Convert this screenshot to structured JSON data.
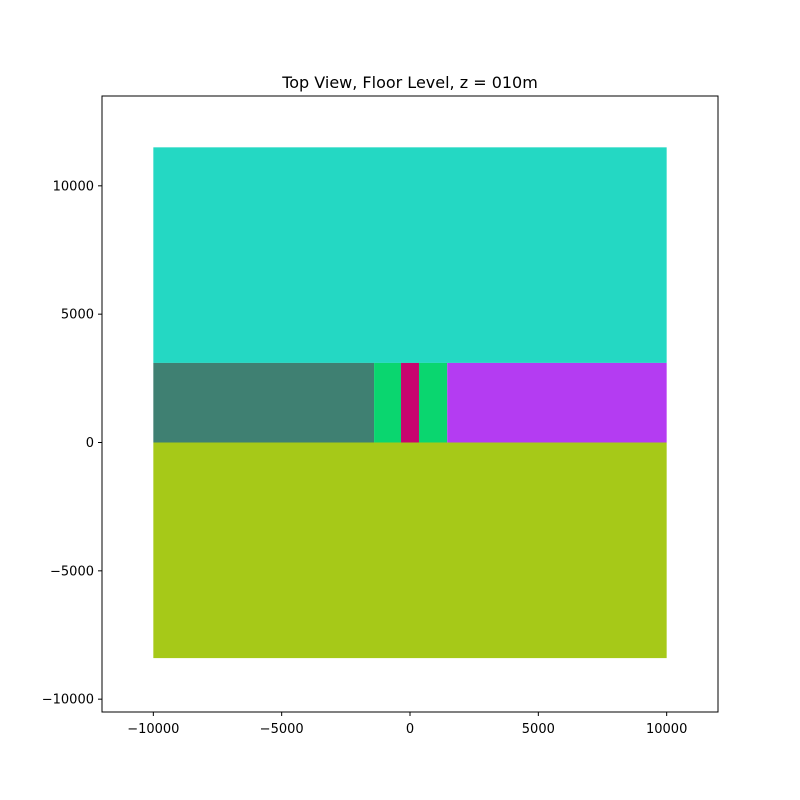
{
  "chart_data": {
    "type": "area",
    "title": "Top View, Floor Level, z = 010m",
    "xlabel": "",
    "ylabel": "",
    "xlim": [
      -12000,
      12000
    ],
    "ylim": [
      -10500,
      13500
    ],
    "grid": false,
    "xticks": [
      {
        "value": -10000,
        "label": "−10000"
      },
      {
        "value": -5000,
        "label": "−5000"
      },
      {
        "value": 0,
        "label": "0"
      },
      {
        "value": 5000,
        "label": "5000"
      },
      {
        "value": 10000,
        "label": "10000"
      }
    ],
    "yticks": [
      {
        "value": -10000,
        "label": "−10000"
      },
      {
        "value": -5000,
        "label": "−5000"
      },
      {
        "value": 0,
        "label": "0"
      },
      {
        "value": 5000,
        "label": "5000"
      },
      {
        "value": 10000,
        "label": "10000"
      }
    ],
    "regions": [
      {
        "x0": -10000,
        "x1": 10000,
        "y0": 3100,
        "y1": 11500,
        "color": "#24d8c3"
      },
      {
        "x0": -10000,
        "x1": 10000,
        "y0": -8400,
        "y1": 0,
        "color": "#a6c918"
      },
      {
        "x0": -10000,
        "x1": -1400,
        "y0": 0,
        "y1": 3100,
        "color": "#3f8072"
      },
      {
        "x0": -1400,
        "x1": -350,
        "y0": 0,
        "y1": 3100,
        "color": "#0ad66f"
      },
      {
        "x0": -350,
        "x1": 350,
        "y0": 0,
        "y1": 3100,
        "color": "#c8046f"
      },
      {
        "x0": 350,
        "x1": 1450,
        "y0": 0,
        "y1": 3100,
        "color": "#0ad66f"
      },
      {
        "x0": 1450,
        "x1": 10000,
        "y0": 0,
        "y1": 3100,
        "color": "#b43cf2"
      }
    ]
  }
}
